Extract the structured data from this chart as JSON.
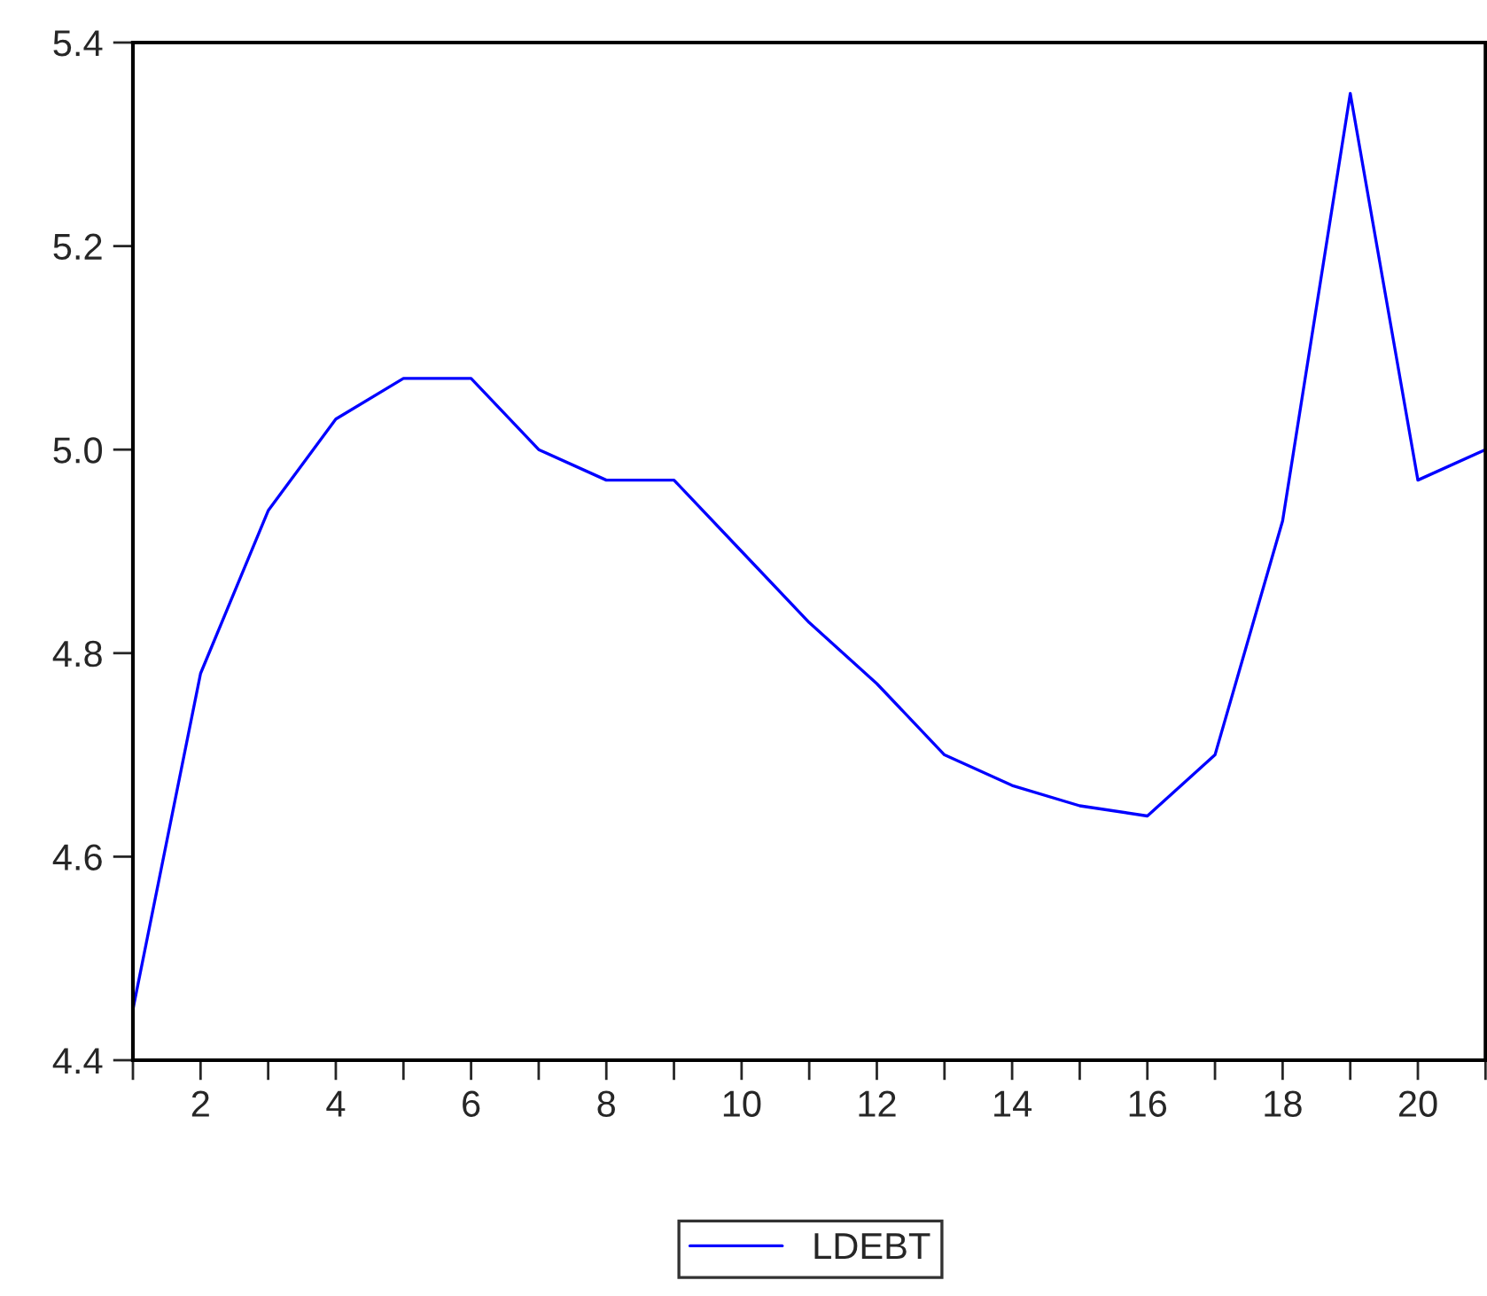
{
  "chart_data": {
    "type": "line",
    "x": [
      1,
      2,
      3,
      4,
      5,
      6,
      7,
      8,
      9,
      10,
      11,
      12,
      13,
      14,
      15,
      16,
      17,
      18,
      19,
      20,
      21
    ],
    "series": [
      {
        "name": "LDEBT",
        "color": "#0000ff",
        "values": [
          4.45,
          4.78,
          4.94,
          5.03,
          5.07,
          5.07,
          5.0,
          4.97,
          4.97,
          4.9,
          4.83,
          4.77,
          4.7,
          4.67,
          4.65,
          4.64,
          4.7,
          4.93,
          5.35,
          4.97,
          5.0
        ]
      }
    ],
    "xlim": [
      1,
      21
    ],
    "xticks": [
      {
        "value": 1,
        "label": null
      },
      2,
      {
        "value": 3,
        "label": null
      },
      4,
      {
        "value": 5,
        "label": null
      },
      6,
      {
        "value": 7,
        "label": null
      },
      8,
      {
        "value": 9,
        "label": null
      },
      10,
      {
        "value": 11,
        "label": null
      },
      12,
      {
        "value": 13,
        "label": null
      },
      14,
      {
        "value": 15,
        "label": null
      },
      16,
      {
        "value": 17,
        "label": null
      },
      18,
      {
        "value": 19,
        "label": null
      },
      20,
      {
        "value": 21,
        "label": null
      }
    ],
    "ylim": [
      4.4,
      5.4
    ],
    "yticks": [
      {
        "value": 4.4,
        "label": "4.4"
      },
      {
        "value": 4.6,
        "label": "4.6"
      },
      {
        "value": 4.8,
        "label": "4.8"
      },
      {
        "value": 5.0,
        "label": "5.0"
      },
      {
        "value": 5.2,
        "label": "5.2"
      },
      {
        "value": 5.4,
        "label": "5.4"
      }
    ],
    "grid": false,
    "legend": "bottom",
    "marker": "none",
    "line_style": "solid"
  }
}
